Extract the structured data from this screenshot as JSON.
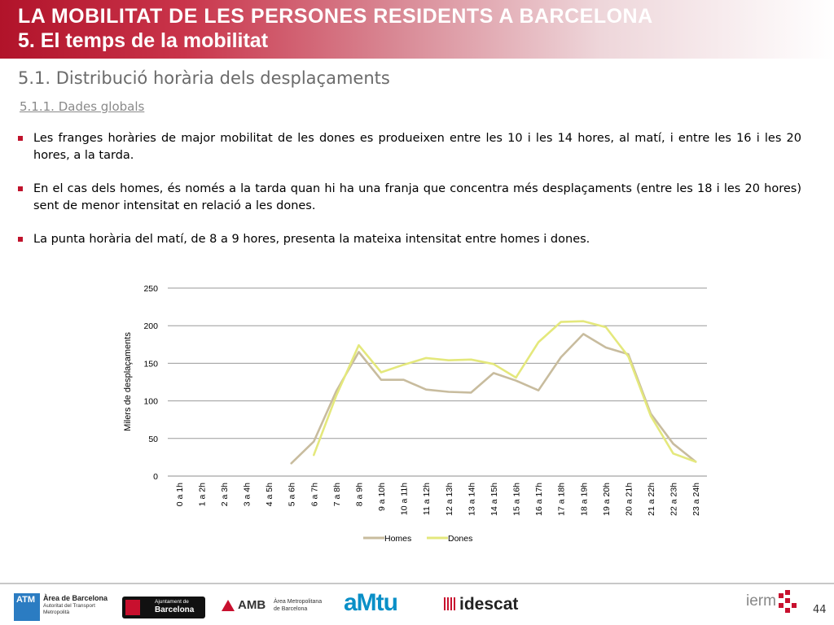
{
  "header": {
    "title": "LA MOBILITAT DE LES PERSONES RESIDENTS A BARCELONA",
    "subtitle": "5. El temps de la mobilitat"
  },
  "section_title": "5.1. Distribució horària dels desplaçaments",
  "subsection_title": "5.1.1. Dades globals",
  "bullets": [
    "Les franges horàries de major mobilitat de les dones es produeixen entre les 10 i les 14 hores, al matí, i entre les 16 i les 20 hores, a la tarda.",
    "En el cas dels homes, és només a la tarda quan hi ha una franja que concentra més desplaçaments (entre les 18 i les 20 hores) sent de menor intensitat en relació a les dones.",
    "La punta horària del matí, de 8 a 9 hores, presenta la mateixa intensitat entre homes i dones."
  ],
  "chart_data": {
    "type": "line",
    "title": "",
    "xlabel": "",
    "ylabel": "Milers de desplaçaments",
    "ylim": [
      0,
      250
    ],
    "yticks": [
      0,
      50,
      100,
      150,
      200,
      250
    ],
    "grid": true,
    "legend_position": "bottom",
    "categories": [
      "0 a 1h",
      "1 a 2h",
      "2 a 3h",
      "3 a 4h",
      "4 a 5h",
      "5 a 6h",
      "6 a 7h",
      "7 a 8h",
      "8 a 9h",
      "9 a 10h",
      "10 a 11h",
      "11 a 12h",
      "12 a 13h",
      "13 a 14h",
      "14 a 15h",
      "15 a 16h",
      "16 a 17h",
      "17 a 18h",
      "18 a 19h",
      "19 a 20h",
      "20 a 21h",
      "21 a 22h",
      "22 a 23h",
      "23 a 24h"
    ],
    "series": [
      {
        "name": "Homes",
        "color": "#c8bc9e",
        "values": [
          null,
          null,
          null,
          null,
          null,
          17,
          46,
          113,
          165,
          128,
          128,
          115,
          112,
          111,
          137,
          127,
          114,
          158,
          189,
          171,
          162,
          83,
          43,
          19
        ]
      },
      {
        "name": "Dones",
        "color": "#e4e87c",
        "values": [
          null,
          null,
          null,
          null,
          null,
          null,
          28,
          107,
          174,
          138,
          148,
          157,
          154,
          155,
          149,
          131,
          178,
          205,
          206,
          198,
          159,
          80,
          30,
          19
        ]
      }
    ]
  },
  "footer": {
    "logos": {
      "atm_badge": "ATM",
      "atm_line1": "Àrea de Barcelona",
      "atm_line2": "Autoritat del Transport",
      "atm_line3": "Metropolità",
      "ajuntament_line1": "Ajuntament de",
      "ajuntament_line2": "Barcelona",
      "amb": "AMB",
      "amb_line1": "Àrea Metropolitana",
      "amb_line2": "de Barcelona",
      "amtu": "aMtu",
      "idescat": "idescat",
      "iermb": "ierm"
    },
    "page_number": "44"
  }
}
